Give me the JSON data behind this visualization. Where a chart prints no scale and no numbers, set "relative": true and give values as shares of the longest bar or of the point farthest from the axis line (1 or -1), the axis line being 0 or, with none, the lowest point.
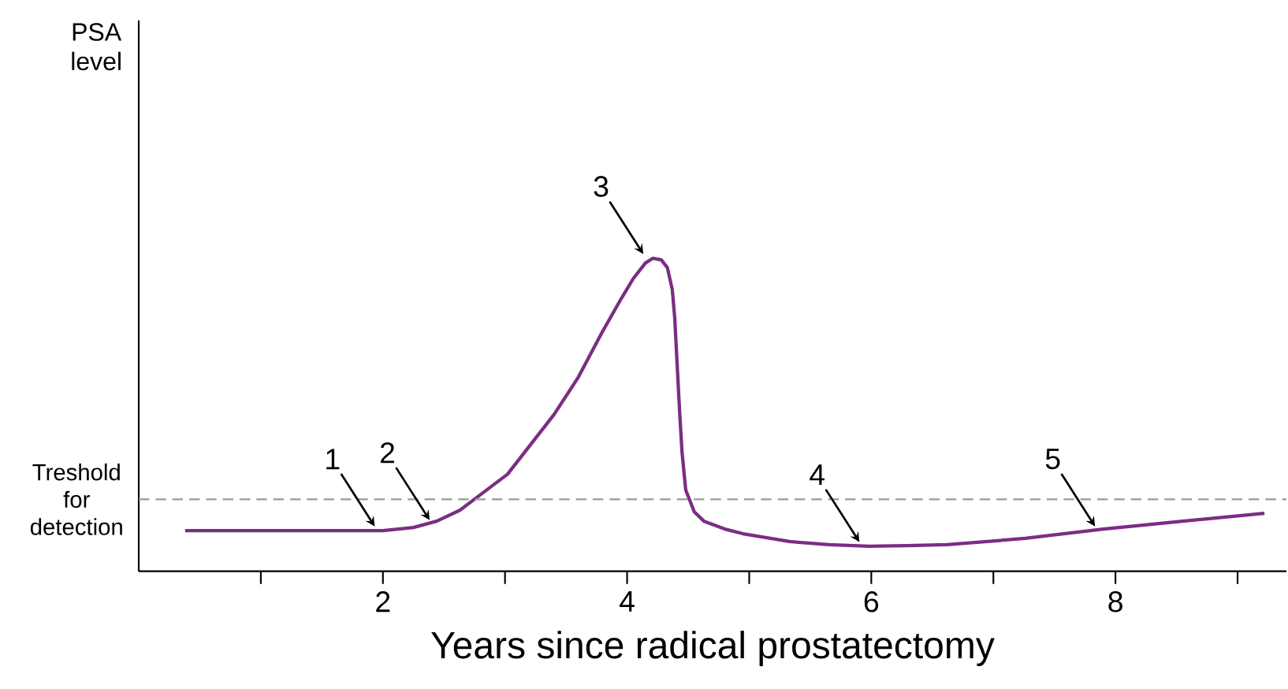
{
  "chart_data": {
    "type": "line",
    "relative": true,
    "xlabel": "Years since radical prostatectomy",
    "x": [
      0.38,
      1.0,
      1.5,
      2.0,
      2.25,
      2.44,
      2.63,
      2.8,
      3.02,
      3.2,
      3.4,
      3.6,
      3.79,
      3.95,
      4.05,
      4.15,
      4.21,
      4.28,
      4.33,
      4.37,
      4.39,
      4.41,
      4.43,
      4.45,
      4.48,
      4.55,
      4.63,
      4.8,
      4.95,
      5.33,
      5.65,
      5.98,
      6.3,
      6.62,
      7.26,
      7.9,
      8.55,
      9.22
    ],
    "series": [
      {
        "color": "#7b2d83",
        "values": [
          0.13,
          0.13,
          0.13,
          0.13,
          0.14,
          0.16,
          0.195,
          0.245,
          0.31,
          0.4,
          0.5,
          0.62,
          0.76,
          0.87,
          0.935,
          0.985,
          1.0,
          0.995,
          0.97,
          0.9,
          0.81,
          0.66,
          0.51,
          0.38,
          0.26,
          0.19,
          0.16,
          0.135,
          0.12,
          0.095,
          0.085,
          0.08,
          0.082,
          0.085,
          0.105,
          0.135,
          0.16,
          0.185
        ]
      }
    ],
    "xlim": [
      0.0,
      9.4
    ],
    "xticks": [
      {
        "value": 1,
        "label": null
      },
      2,
      {
        "value": 3,
        "label": null
      },
      4,
      {
        "value": 5,
        "label": null
      },
      6,
      {
        "value": 7,
        "label": null
      },
      8,
      {
        "value": 9,
        "label": null
      }
    ],
    "ref_lines": [
      {
        "axis": "y",
        "value": 0.23,
        "label": "Treshold for detection",
        "color": "#999999",
        "line_style": "dashed"
      }
    ],
    "annotations": [
      "PSA level",
      {
        "text": "1",
        "x": 1.95,
        "y": 0.13
      },
      {
        "text": "2",
        "x": 2.4,
        "y": 0.15
      },
      {
        "text": "3",
        "x": 4.15,
        "y": 1.0
      },
      {
        "text": "4",
        "x": 5.92,
        "y": 0.08
      },
      {
        "text": "5",
        "x": 7.85,
        "y": 0.13
      }
    ]
  }
}
